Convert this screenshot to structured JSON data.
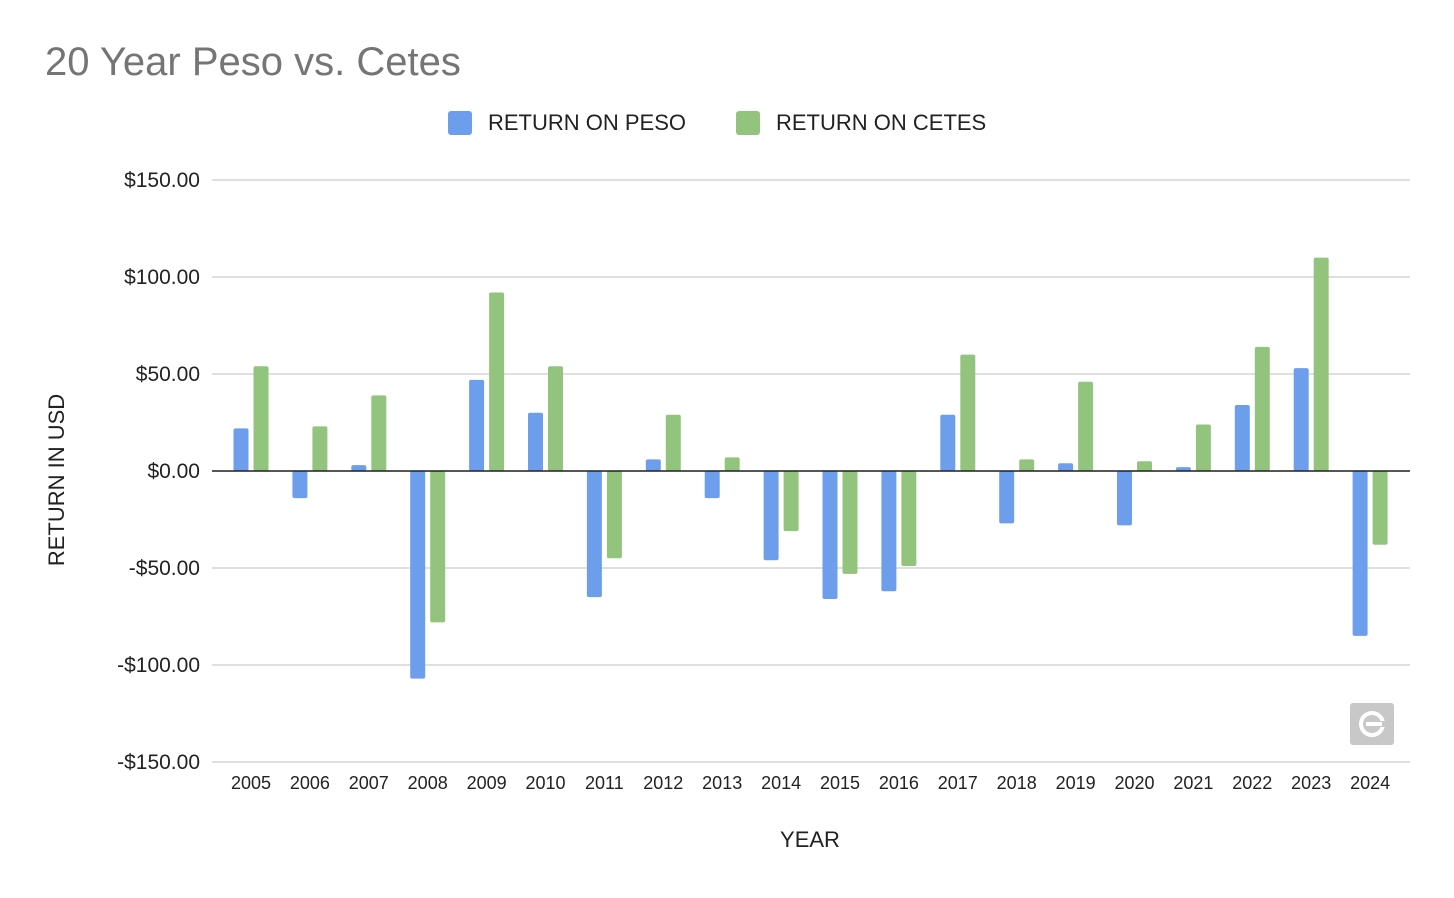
{
  "chart_data": {
    "type": "bar",
    "title": "20 Year Peso vs. Cetes",
    "xlabel": "YEAR",
    "ylabel": "RETURN IN USD",
    "ylim": [
      -150,
      150
    ],
    "yticks": [
      150,
      100,
      50,
      0,
      -50,
      -100,
      -150
    ],
    "ytick_labels": [
      "$150.00",
      "$100.00",
      "$50.00",
      "$0.00",
      "-$50.00",
      "-$100.00",
      "-$150.00"
    ],
    "categories": [
      "2005",
      "2006",
      "2007",
      "2008",
      "2009",
      "2010",
      "2011",
      "2012",
      "2013",
      "2014",
      "2015",
      "2016",
      "2017",
      "2018",
      "2019",
      "2020",
      "2021",
      "2022",
      "2023",
      "2024"
    ],
    "series": [
      {
        "name": "RETURN ON PESO",
        "color": "#6d9eeb",
        "values": [
          22,
          -14,
          3,
          -107,
          47,
          30,
          -65,
          6,
          -14,
          -46,
          -66,
          -62,
          29,
          -27,
          4,
          -28,
          2,
          34,
          53,
          -85
        ]
      },
      {
        "name": "RETURN ON CETES",
        "color": "#93c47d",
        "values": [
          54,
          23,
          39,
          -78,
          92,
          54,
          -45,
          29,
          7,
          -31,
          -53,
          -49,
          60,
          6,
          46,
          5,
          24,
          64,
          110,
          -38
        ]
      }
    ],
    "grid": true,
    "legend_position": "top"
  },
  "icons": {
    "corner_logo": "spreadsheet-logo-icon"
  }
}
